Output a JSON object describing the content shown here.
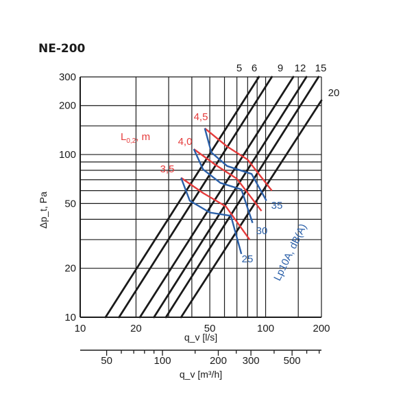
{
  "chart_data": {
    "type": "line",
    "title": "NE-200",
    "xlabel": "q_v [l/s]",
    "xlabel2": "q_v [m³/h]",
    "ylabel": "Δp_t, Pa",
    "x_scale": "log",
    "y_scale": "log",
    "xlim": [
      10,
      200
    ],
    "ylim": [
      10,
      300
    ],
    "x_ticks": [
      10,
      20,
      50,
      100,
      200
    ],
    "x_ticks_labels": [
      "10",
      "20",
      "50",
      "100",
      "200"
    ],
    "x2_ticks": [
      50,
      100,
      200,
      300,
      500
    ],
    "x2_ticks_labels": [
      "50",
      "100",
      "200",
      "300",
      "500"
    ],
    "y_ticks": [
      10,
      20,
      50,
      100,
      200,
      300
    ],
    "y_ticks_labels": [
      "10",
      "20",
      "50",
      "100",
      "200",
      "300"
    ],
    "x_minor_ticks": [
      30,
      40,
      60,
      70,
      80,
      90,
      150
    ],
    "y_minor_ticks": [
      30,
      40,
      60,
      70,
      80,
      90,
      150
    ],
    "x2_minor_ticks": [
      60,
      70,
      80,
      90,
      150,
      250,
      400,
      600,
      700
    ],
    "grid": true,
    "series": [
      {
        "name": "5",
        "color": "#1a1a1a",
        "x": [
          13.7,
          92
        ],
        "y": [
          10,
          300
        ]
      },
      {
        "name": "6",
        "color": "#1a1a1a",
        "x": [
          16.2,
          108
        ],
        "y": [
          10,
          300
        ]
      },
      {
        "name": "9",
        "color": "#1a1a1a",
        "x": [
          21,
          141
        ],
        "y": [
          10,
          300
        ]
      },
      {
        "name": "12",
        "color": "#1a1a1a",
        "x": [
          25,
          166
        ],
        "y": [
          10,
          300
        ]
      },
      {
        "name": "15",
        "color": "#1a1a1a",
        "x": [
          29,
          193
        ],
        "y": [
          10,
          300
        ]
      },
      {
        "name": "20",
        "color": "#1a1a1a",
        "x": [
          35,
          200
        ],
        "y": [
          10,
          215
        ]
      }
    ],
    "throw_series": [
      {
        "name": "4,5",
        "x": [
          47,
          62,
          80,
          108
        ],
        "y": [
          145,
          112,
          93,
          60
        ]
      },
      {
        "name": "4,0",
        "x": [
          41,
          54,
          70,
          95
        ],
        "y": [
          108,
          86,
          71,
          45
        ]
      },
      {
        "name": "3,5",
        "x": [
          35,
          46,
          61,
          82
        ],
        "y": [
          72,
          58,
          48,
          30
        ]
      }
    ],
    "sound_series": [
      {
        "name": "35",
        "x": [
          47,
          51,
          62,
          84,
          101
        ],
        "y": [
          145,
          103,
          85,
          76,
          52
        ]
      },
      {
        "name": "30",
        "x": [
          41,
          46,
          57,
          74,
          85
        ],
        "y": [
          108,
          81,
          67,
          61,
          38
        ]
      },
      {
        "name": "25",
        "x": [
          35,
          39,
          50,
          65,
          74
        ],
        "y": [
          72,
          52,
          44,
          42,
          24.5
        ]
      }
    ],
    "line_labels": [
      "5",
      "6",
      "9",
      "12",
      "15",
      "20"
    ],
    "throw_title": "L0,2, m",
    "throw_labels": [
      "4,5",
      "4,0",
      "3,5"
    ],
    "sound_title": "Lp10A, dB(A)",
    "sound_labels": [
      "35",
      "30",
      "25"
    ],
    "colors": {
      "throw": "#e53b3b",
      "sound": "#2a5fa8",
      "lines": "#1a1a1a"
    }
  }
}
